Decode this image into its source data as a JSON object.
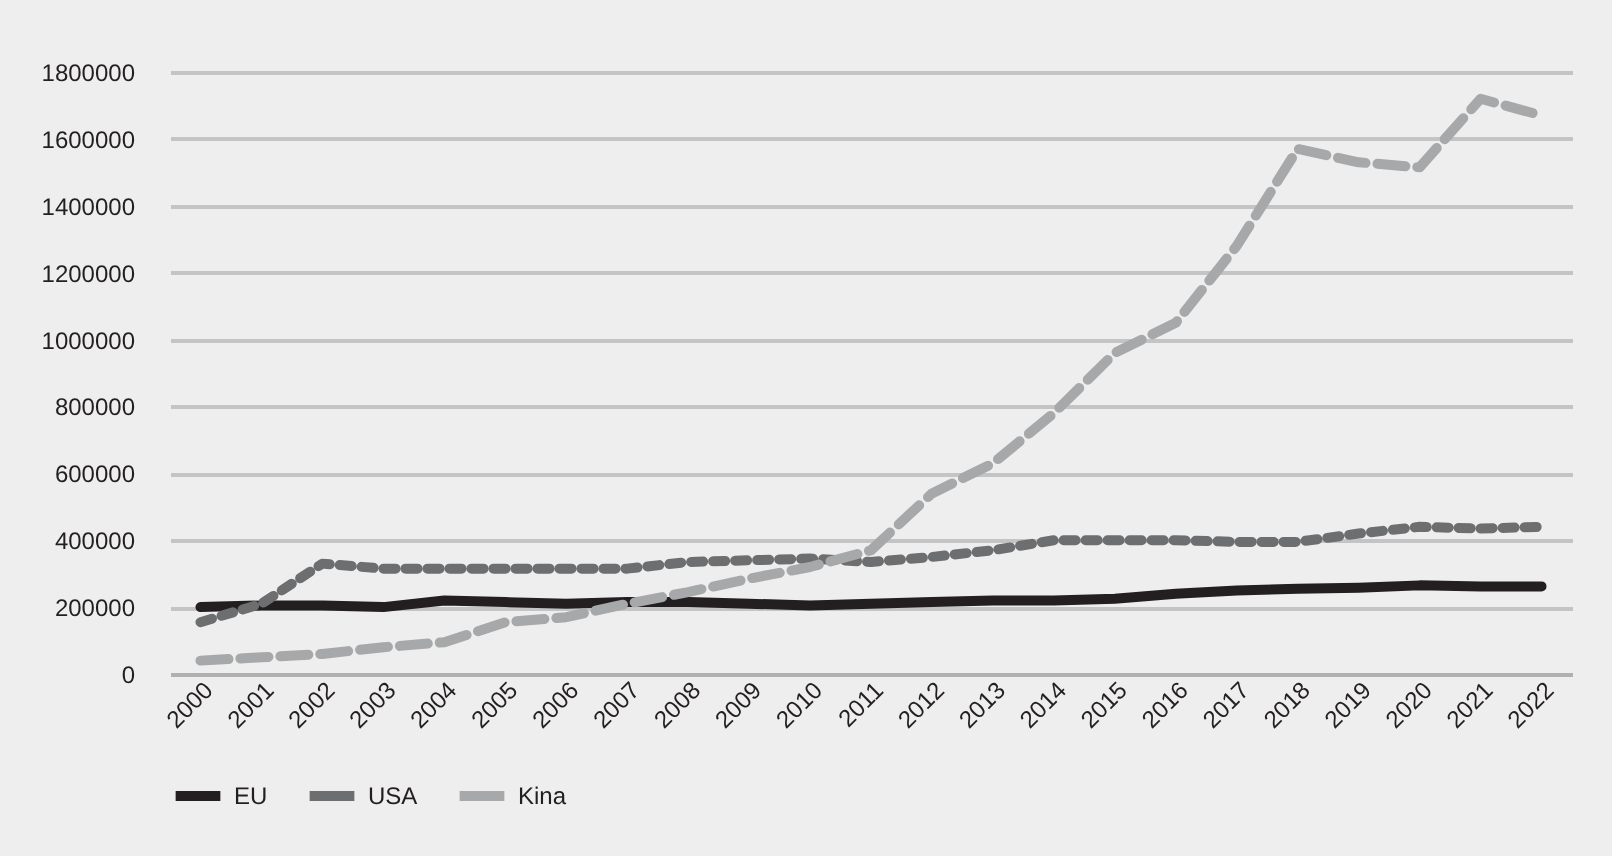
{
  "chart_data": {
    "type": "line",
    "categories": [
      "2000",
      "2001",
      "2002",
      "2003",
      "2004",
      "2005",
      "2006",
      "2007",
      "2008",
      "2009",
      "2010",
      "2011",
      "2012",
      "2013",
      "2014",
      "2015",
      "2016",
      "2017",
      "2018",
      "2019",
      "2020",
      "2021",
      "2022"
    ],
    "ylim": [
      0,
      1800000
    ],
    "yticks": [
      0,
      200000,
      400000,
      600000,
      800000,
      1000000,
      1200000,
      1400000,
      1600000,
      1800000
    ],
    "grid": "y",
    "legend": "bottom",
    "series": [
      {
        "name": "EU",
        "color": "#231f20",
        "line_style": "solid",
        "values": [
          200000,
          205000,
          205000,
          200000,
          220000,
          215000,
          210000,
          215000,
          215000,
          210000,
          205000,
          210000,
          215000,
          220000,
          220000,
          225000,
          240000,
          250000,
          255000,
          258000,
          265000,
          262000,
          262000
        ]
      },
      {
        "name": "USA",
        "color": "#6d6e70",
        "line_style": "dotted",
        "values": [
          155000,
          210000,
          330000,
          315000,
          315000,
          315000,
          315000,
          315000,
          335000,
          340000,
          345000,
          335000,
          350000,
          370000,
          400000,
          400000,
          400000,
          395000,
          395000,
          420000,
          440000,
          435000,
          440000
        ]
      },
      {
        "name": "Kina",
        "color": "#a7a8aa",
        "line_style": "dashed",
        "values": [
          40000,
          50000,
          60000,
          80000,
          95000,
          155000,
          170000,
          210000,
          245000,
          285000,
          320000,
          370000,
          540000,
          630000,
          780000,
          960000,
          1050000,
          1280000,
          1570000,
          1530000,
          1515000,
          1720000,
          1670000
        ]
      }
    ]
  }
}
